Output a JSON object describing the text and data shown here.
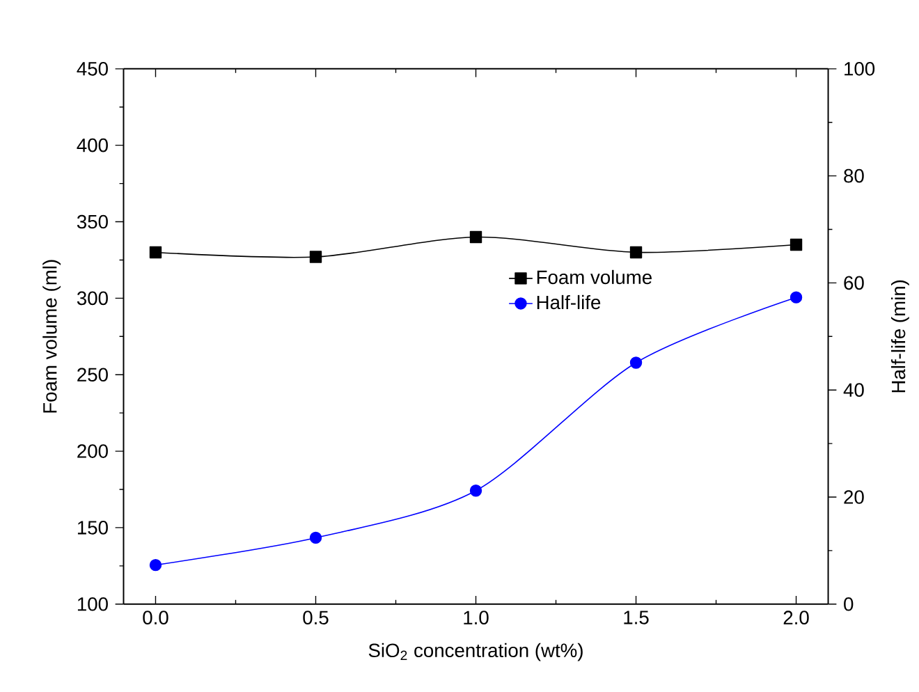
{
  "chart_data": {
    "type": "line",
    "xlabel": "SiO$_{2}$ concentration (wt%)",
    "ylabel": "Foam volume (ml)",
    "y2label": "Half-life (min)",
    "x": [
      0.0,
      0.5,
      1.0,
      1.5,
      2.0
    ],
    "xlim": [
      -0.1,
      2.1
    ],
    "xticks": [
      {
        "value": 0,
        "label": "0.0"
      },
      0.5,
      {
        "value": 1,
        "label": "1.0"
      },
      1.5,
      {
        "value": 2,
        "label": "2.0"
      }
    ],
    "ylim": [
      100,
      450
    ],
    "yticks": [
      100,
      150,
      200,
      250,
      300,
      350,
      400,
      450
    ],
    "y2lim": [
      0,
      100
    ],
    "y2ticks": [
      0,
      20,
      40,
      60,
      80,
      100
    ],
    "legend": "top right",
    "series": [
      {
        "name": "Foam volume",
        "color": "#000000",
        "marker": "square",
        "values": [
          330,
          327,
          340,
          330,
          335
        ]
      },
      {
        "name": "Half-life",
        "color": "#0000ff",
        "marker": "circle",
        "axis": "y2",
        "values": [
          7.3,
          12.4,
          21.2,
          45.1,
          57.3
        ]
      }
    ]
  }
}
